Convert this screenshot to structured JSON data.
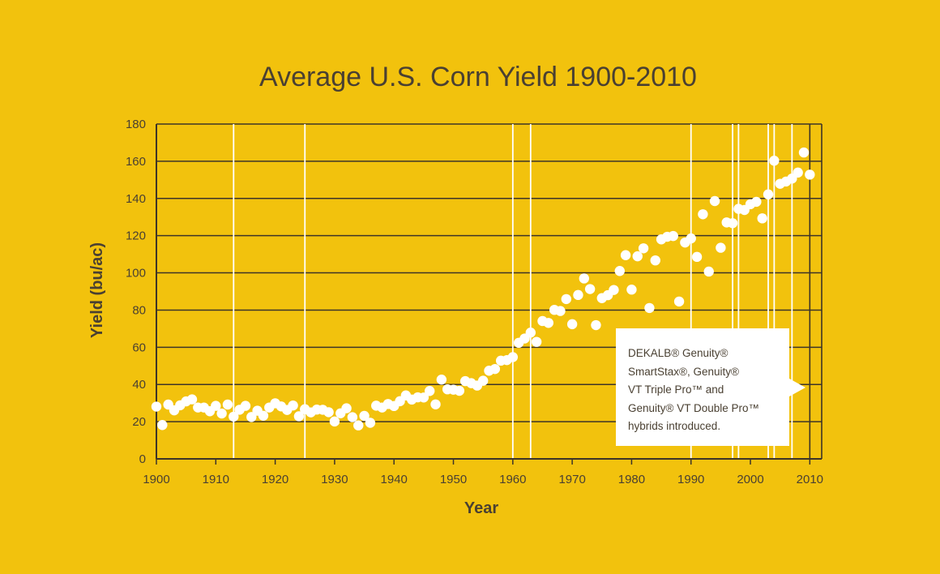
{
  "chart_data": {
    "type": "scatter",
    "title": "Average U.S. Corn Yield 1900-2010",
    "xlabel": "Year",
    "ylabel": "Yield (bu/ac)",
    "xlim": [
      1900,
      2012
    ],
    "ylim": [
      0,
      180
    ],
    "x_ticks": [
      "1900",
      "1910",
      "1920",
      "1930",
      "1940",
      "1950",
      "1960",
      "1970",
      "1980",
      "1990",
      "2000",
      "2010"
    ],
    "y_ticks": [
      "0",
      "20",
      "40",
      "60",
      "80",
      "100",
      "120",
      "140",
      "160",
      "180"
    ],
    "grid": "horizontal",
    "marker_color": "#ffffff",
    "vertical_markers": [
      1913,
      1925,
      1960,
      1963,
      1990,
      1997,
      1998,
      2003,
      2004,
      2007,
      2010,
      2012
    ],
    "points": [
      [
        1900,
        28.1
      ],
      [
        1901,
        18.2
      ],
      [
        1902,
        29.2
      ],
      [
        1903,
        26.1
      ],
      [
        1904,
        28.8
      ],
      [
        1905,
        30.9
      ],
      [
        1906,
        32.0
      ],
      [
        1907,
        27.6
      ],
      [
        1908,
        27.6
      ],
      [
        1909,
        25.6
      ],
      [
        1910,
        28.5
      ],
      [
        1911,
        24.4
      ],
      [
        1912,
        29.2
      ],
      [
        1913,
        22.7
      ],
      [
        1914,
        26.4
      ],
      [
        1915,
        28.5
      ],
      [
        1916,
        22.5
      ],
      [
        1917,
        25.9
      ],
      [
        1918,
        23.2
      ],
      [
        1919,
        27.6
      ],
      [
        1920,
        29.9
      ],
      [
        1921,
        28.2
      ],
      [
        1922,
        26.3
      ],
      [
        1923,
        28.7
      ],
      [
        1924,
        22.9
      ],
      [
        1925,
        26.7
      ],
      [
        1926,
        25.0
      ],
      [
        1927,
        26.5
      ],
      [
        1928,
        26.4
      ],
      [
        1929,
        25.1
      ],
      [
        1930,
        20.1
      ],
      [
        1931,
        24.5
      ],
      [
        1932,
        27.2
      ],
      [
        1933,
        22.4
      ],
      [
        1934,
        18.0
      ],
      [
        1935,
        23.1
      ],
      [
        1936,
        19.4
      ],
      [
        1937,
        28.6
      ],
      [
        1938,
        27.6
      ],
      [
        1939,
        29.5
      ],
      [
        1940,
        28.4
      ],
      [
        1941,
        31.0
      ],
      [
        1942,
        34.1
      ],
      [
        1943,
        31.9
      ],
      [
        1944,
        33.1
      ],
      [
        1945,
        33.0
      ],
      [
        1946,
        36.5
      ],
      [
        1947,
        29.3
      ],
      [
        1948,
        42.6
      ],
      [
        1949,
        37.4
      ],
      [
        1950,
        37.2
      ],
      [
        1951,
        36.6
      ],
      [
        1952,
        41.8
      ],
      [
        1953,
        40.7
      ],
      [
        1954,
        39.4
      ],
      [
        1955,
        42.0
      ],
      [
        1956,
        47.4
      ],
      [
        1957,
        48.3
      ],
      [
        1958,
        52.8
      ],
      [
        1959,
        53.1
      ],
      [
        1960,
        54.7
      ],
      [
        1961,
        62.4
      ],
      [
        1962,
        64.7
      ],
      [
        1963,
        67.9
      ],
      [
        1964,
        62.9
      ],
      [
        1965,
        74.1
      ],
      [
        1966,
        73.1
      ],
      [
        1967,
        80.1
      ],
      [
        1968,
        79.5
      ],
      [
        1969,
        85.9
      ],
      [
        1970,
        72.4
      ],
      [
        1971,
        88.1
      ],
      [
        1972,
        97.0
      ],
      [
        1973,
        91.3
      ],
      [
        1974,
        71.9
      ],
      [
        1975,
        86.4
      ],
      [
        1976,
        88.0
      ],
      [
        1977,
        90.8
      ],
      [
        1978,
        101.0
      ],
      [
        1979,
        109.5
      ],
      [
        1980,
        91.0
      ],
      [
        1981,
        108.9
      ],
      [
        1982,
        113.2
      ],
      [
        1983,
        81.1
      ],
      [
        1984,
        106.7
      ],
      [
        1985,
        118.0
      ],
      [
        1986,
        119.4
      ],
      [
        1987,
        119.8
      ],
      [
        1988,
        84.6
      ],
      [
        1989,
        116.3
      ],
      [
        1990,
        118.5
      ],
      [
        1991,
        108.6
      ],
      [
        1992,
        131.5
      ],
      [
        1993,
        100.7
      ],
      [
        1994,
        138.6
      ],
      [
        1995,
        113.5
      ],
      [
        1996,
        127.1
      ],
      [
        1997,
        126.7
      ],
      [
        1998,
        134.4
      ],
      [
        1999,
        133.8
      ],
      [
        2000,
        136.9
      ],
      [
        2001,
        138.2
      ],
      [
        2002,
        129.3
      ],
      [
        2003,
        142.2
      ],
      [
        2004,
        160.3
      ],
      [
        2005,
        147.9
      ],
      [
        2006,
        149.1
      ],
      [
        2007,
        150.7
      ],
      [
        2008,
        153.9
      ],
      [
        2009,
        164.7
      ],
      [
        2010,
        152.8
      ]
    ],
    "annotation": {
      "lines": [
        "DEKALB® Genuity®",
        "SmartStax®, Genuity®",
        "VT Triple Pro™ and",
        "Genuity® VT Double Pro™",
        "hybrids introduced."
      ]
    }
  }
}
